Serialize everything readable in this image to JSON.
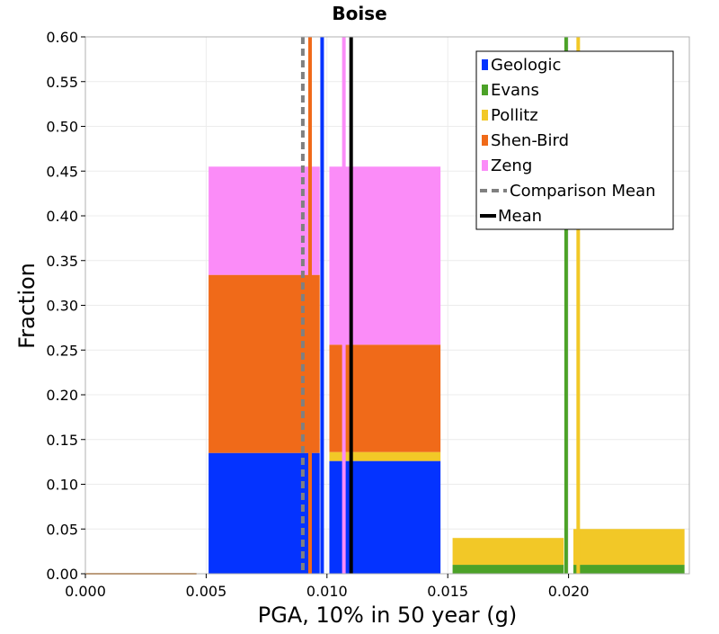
{
  "chart_data": {
    "type": "bar",
    "stacked": true,
    "title": "Boise",
    "xlabel": "PGA, 10% in 50 year (g)",
    "ylabel": "Fraction",
    "xlim": [
      0.0,
      0.025
    ],
    "ylim": [
      0.0,
      0.6
    ],
    "xticks": [
      "0.000",
      "0.005",
      "0.010",
      "0.015",
      "0.020"
    ],
    "yticks": [
      "0.00",
      "0.05",
      "0.10",
      "0.15",
      "0.20",
      "0.25",
      "0.30",
      "0.35",
      "0.40",
      "0.45",
      "0.50",
      "0.55",
      "0.60"
    ],
    "grid": true,
    "legend_position": "top-right",
    "bins": [
      {
        "x0": 0.0,
        "x1": 0.0046
      },
      {
        "x0": 0.0051,
        "x1": 0.0097
      },
      {
        "x0": 0.0101,
        "x1": 0.0147
      },
      {
        "x0": 0.0152,
        "x1": 0.0198
      },
      {
        "x0": 0.0202,
        "x1": 0.0248
      }
    ],
    "series": [
      {
        "name": "Geologic",
        "color": "#0433ff",
        "values": [
          0.0,
          0.135,
          0.126,
          0.0,
          0.0
        ]
      },
      {
        "name": "Evans",
        "color": "#4ca228",
        "values": [
          0.0,
          0.0,
          0.0,
          0.01,
          0.01
        ]
      },
      {
        "name": "Pollitz",
        "color": "#f2c827",
        "values": [
          0.0,
          0.0,
          0.01,
          0.03,
          0.04
        ]
      },
      {
        "name": "Shen-Bird",
        "color": "#f06a19",
        "values": [
          0.0,
          0.199,
          0.12,
          0.0,
          0.0
        ]
      },
      {
        "name": "Zeng",
        "color": "#fb8cf8",
        "values": [
          0.0,
          0.121,
          0.199,
          0.0,
          0.0
        ]
      }
    ],
    "vertical_lines": [
      {
        "series": "Geologic",
        "x": 0.0098,
        "color": "#0433ff",
        "style": "solid"
      },
      {
        "series": "Evans",
        "x": 0.0199,
        "color": "#4ca228",
        "style": "solid"
      },
      {
        "series": "Pollitz",
        "x": 0.0204,
        "color": "#f2c827",
        "style": "solid"
      },
      {
        "series": "Shen-Bird",
        "x": 0.0093,
        "color": "#f06a19",
        "style": "solid"
      },
      {
        "series": "Zeng",
        "x": 0.0107,
        "color": "#fb8cf8",
        "style": "solid"
      },
      {
        "series": "Comparison Mean",
        "x": 0.009,
        "color": "#808080",
        "style": "dashed"
      },
      {
        "series": "Mean",
        "x": 0.011,
        "color": "#000000",
        "style": "solid"
      }
    ],
    "legend": [
      {
        "label": "Geologic",
        "color": "#0433ff",
        "kind": "patch"
      },
      {
        "label": "Evans",
        "color": "#4ca228",
        "kind": "patch"
      },
      {
        "label": "Pollitz",
        "color": "#f2c827",
        "kind": "patch"
      },
      {
        "label": "Shen-Bird",
        "color": "#f06a19",
        "kind": "patch"
      },
      {
        "label": "Zeng",
        "color": "#fb8cf8",
        "kind": "patch"
      },
      {
        "label": "Comparison Mean",
        "color": "#808080",
        "kind": "dashed-line"
      },
      {
        "label": "Mean",
        "color": "#000000",
        "kind": "line"
      }
    ],
    "baseline_color": "#c98a4a"
  }
}
